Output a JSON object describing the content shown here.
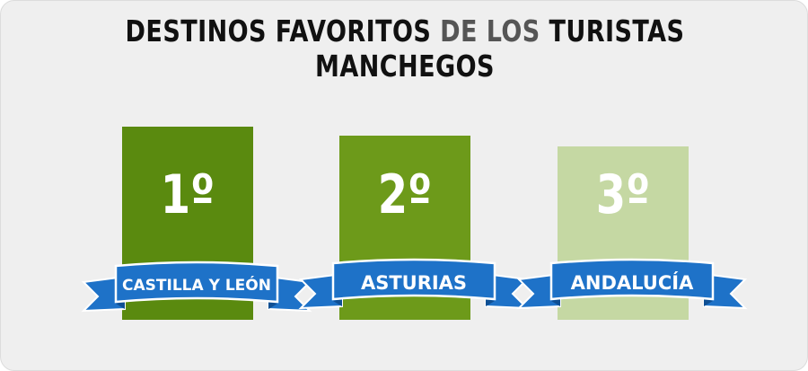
{
  "title": {
    "part1": "DESTINOS FAVORITOS ",
    "part2": "DE LOS",
    "part3": " TURISTAS MANCHEGOS"
  },
  "podiums": [
    {
      "rank": "1º",
      "destination": "CASTILLA Y LEÓN",
      "color": "#5a8a0f"
    },
    {
      "rank": "2º",
      "destination": "ASTURIAS",
      "color": "#6d9a1a"
    },
    {
      "rank": "3º",
      "destination": "ANDALUCÍA",
      "color": "#c5d8a3"
    }
  ],
  "colors": {
    "background": "#efefef",
    "ribbon": "#1e72c8",
    "ribbon_dark": "#0f4f93",
    "ribbon_border": "#ffffff"
  }
}
